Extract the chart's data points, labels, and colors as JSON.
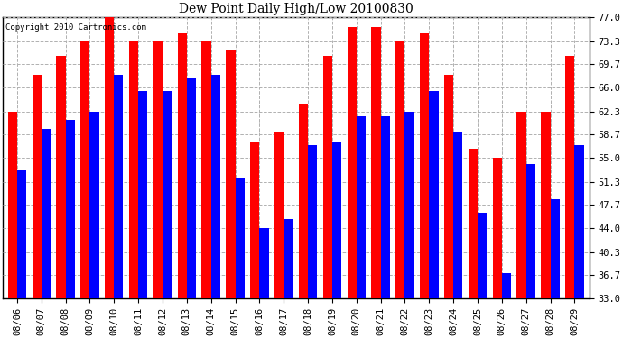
{
  "title": "Dew Point Daily High/Low 20100830",
  "copyright": "Copyright 2010 Cartronics.com",
  "dates": [
    "08/06",
    "08/07",
    "08/08",
    "08/09",
    "08/10",
    "08/11",
    "08/12",
    "08/13",
    "08/14",
    "08/15",
    "08/16",
    "08/17",
    "08/18",
    "08/19",
    "08/20",
    "08/21",
    "08/22",
    "08/23",
    "08/24",
    "08/25",
    "08/26",
    "08/27",
    "08/28",
    "08/29"
  ],
  "highs": [
    62.3,
    68.0,
    71.0,
    73.3,
    77.0,
    73.3,
    73.3,
    74.5,
    73.3,
    72.0,
    57.5,
    59.0,
    63.5,
    71.0,
    75.5,
    75.5,
    73.3,
    74.5,
    68.0,
    56.5,
    55.0,
    62.3,
    62.3,
    71.0
  ],
  "lows": [
    53.0,
    59.5,
    61.0,
    62.3,
    68.0,
    65.5,
    65.5,
    67.5,
    68.0,
    52.0,
    44.0,
    45.5,
    57.0,
    57.5,
    61.5,
    61.5,
    62.3,
    65.5,
    59.0,
    46.5,
    37.0,
    54.0,
    48.5,
    57.0
  ],
  "high_color": "#ff0000",
  "low_color": "#0000ff",
  "bg_color": "#ffffff",
  "grid_color": "#b0b0b0",
  "ylim_min": 33.0,
  "ylim_max": 77.0,
  "yticks": [
    33.0,
    36.7,
    40.3,
    44.0,
    47.7,
    51.3,
    55.0,
    58.7,
    62.3,
    66.0,
    69.7,
    73.3,
    77.0
  ],
  "bar_width": 0.38,
  "figsize": [
    6.9,
    3.75
  ],
  "dpi": 100
}
